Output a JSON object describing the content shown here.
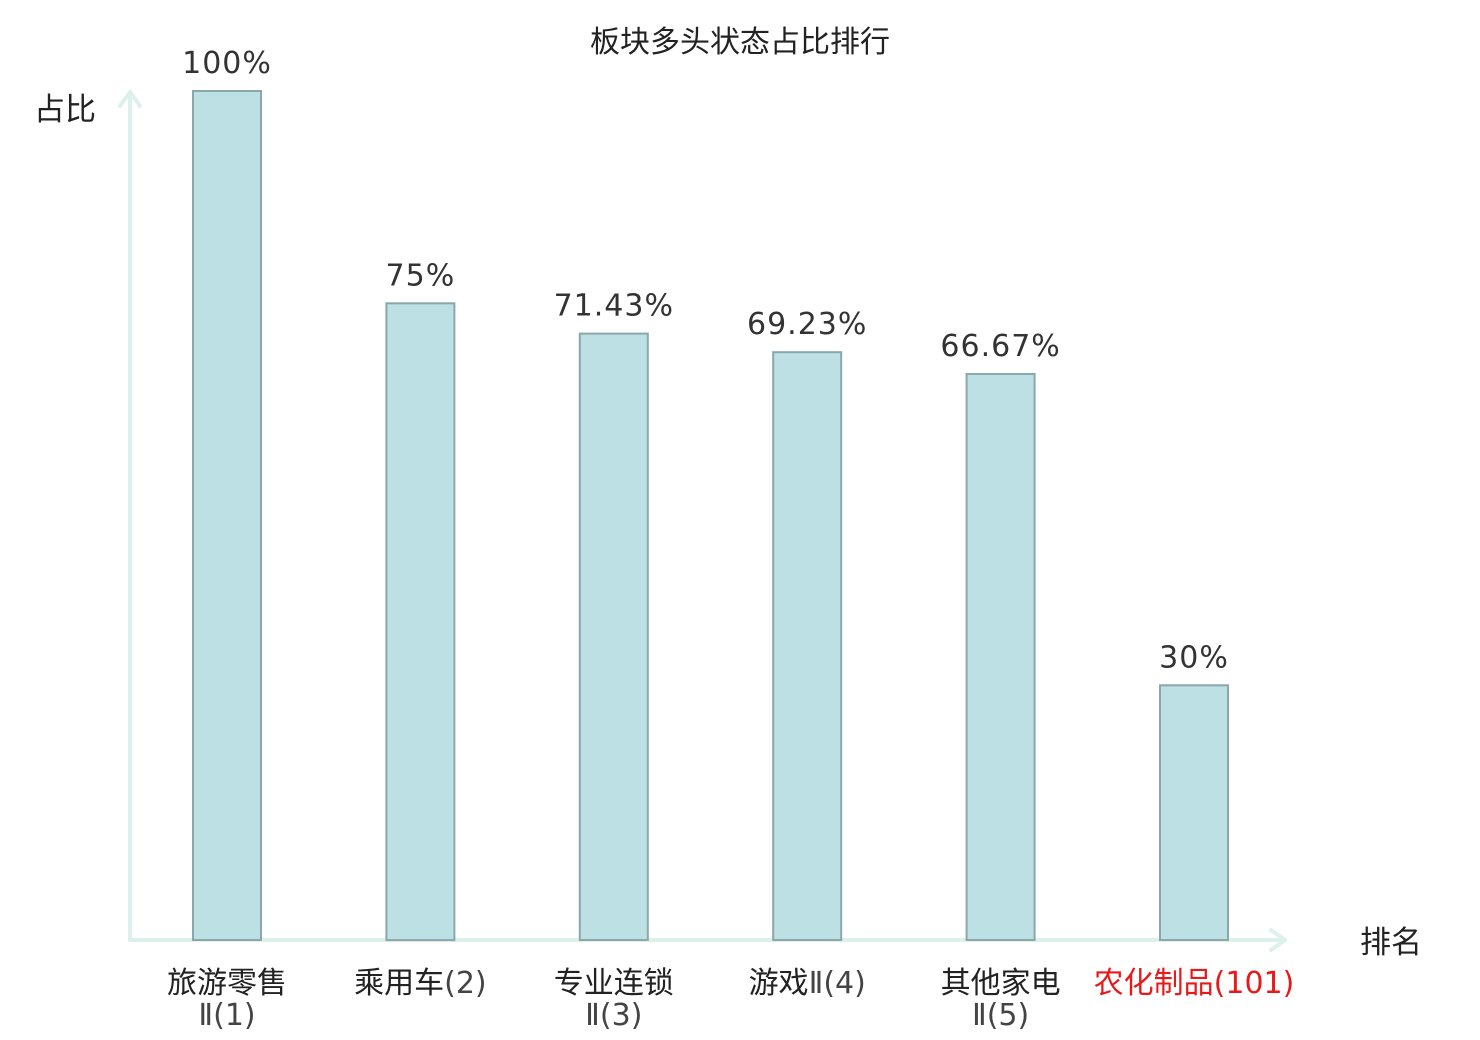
{
  "chart_data": {
    "type": "bar",
    "title": "板块多头状态占比排行",
    "ylabel": "占比",
    "xlabel": "排名",
    "ylim": [
      0,
      100
    ],
    "grid": false,
    "legend": "none",
    "categories": [
      {
        "name": "旅游零售",
        "suffix": "Ⅱ(1)",
        "wrap": true,
        "highlight": false
      },
      {
        "name": "乘用车",
        "suffix": "(2)",
        "wrap": false,
        "highlight": false
      },
      {
        "name": "专业连锁",
        "suffix": "Ⅱ(3)",
        "wrap": true,
        "highlight": false
      },
      {
        "name": "游戏",
        "suffix": "Ⅱ(4)",
        "wrap": false,
        "highlight": false
      },
      {
        "name": "其他家电",
        "suffix": "Ⅱ(5)",
        "wrap": true,
        "highlight": false
      },
      {
        "name": "农化制品",
        "suffix": "(101)",
        "wrap": false,
        "highlight": true
      }
    ],
    "values": [
      100,
      75,
      71.43,
      69.23,
      66.67,
      30
    ],
    "value_labels": [
      "100%",
      "75%",
      "71.43%",
      "69.23%",
      "66.67%",
      "30%"
    ]
  },
  "colors": {
    "bar_fill": "#bce0e3",
    "bar_stroke": "#8aa7aa",
    "axis": "#dcf1ec",
    "highlight": "#e8191a"
  }
}
